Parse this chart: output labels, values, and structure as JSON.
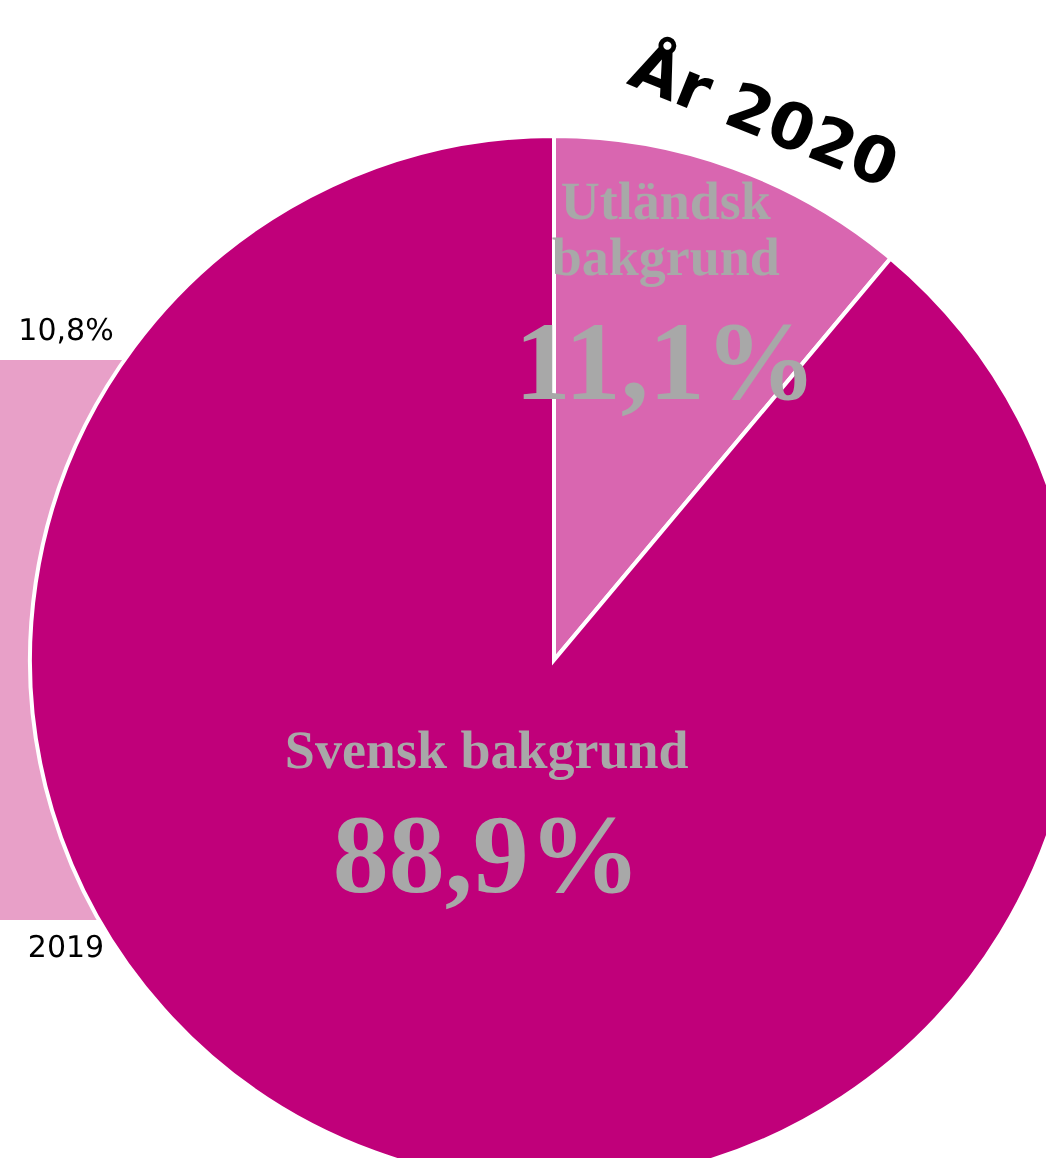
{
  "chart_data": [
    {
      "type": "bar",
      "categories": [
        "2019"
      ],
      "values": [
        10.8
      ],
      "color": "#e8a0c8",
      "value_labels": [
        "10,8%"
      ]
    },
    {
      "type": "pie",
      "title": "År 2020",
      "categories": [
        "Utländsk bakgrund",
        "Svensk bakgrund"
      ],
      "values": [
        11.1,
        88.9
      ],
      "colors": [
        "#d966b0",
        "#c0007a"
      ],
      "value_labels": [
        "11,1%",
        "88,9%"
      ]
    }
  ]
}
